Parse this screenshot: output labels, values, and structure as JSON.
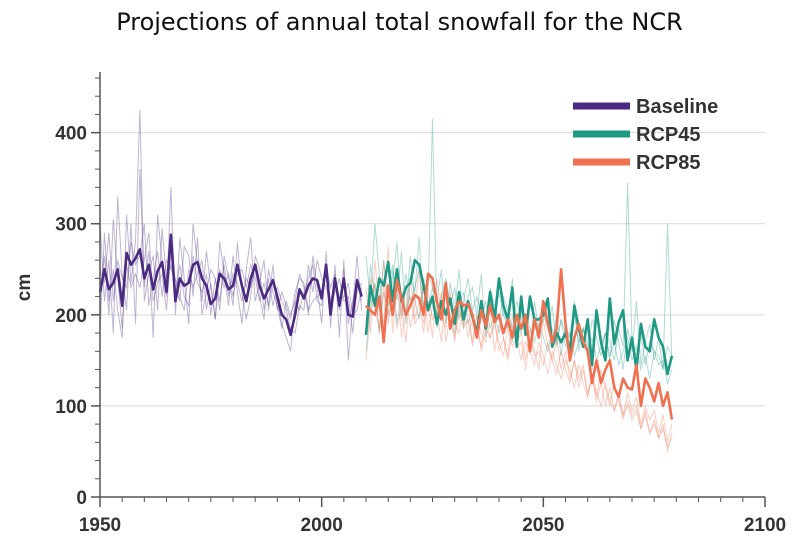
{
  "title": "Projections of annual total snowfall for the NCR",
  "chart_data": {
    "type": "line",
    "title": "Projections of annual total snowfall for the NCR",
    "xlabel": "",
    "ylabel": "cm",
    "xlim": [
      1950,
      2100
    ],
    "ylim": [
      0,
      460
    ],
    "x_ticks": [
      1950,
      2000,
      2050,
      2100
    ],
    "y_ticks": [
      0,
      100,
      200,
      300,
      400
    ],
    "grid": "horizontal",
    "legend_position": "top-right",
    "series": [
      {
        "name": "Baseline",
        "color": "#4b2a82",
        "x_start": 1950,
        "values": [
          225,
          250,
          228,
          235,
          250,
          210,
          268,
          255,
          262,
          272,
          240,
          255,
          228,
          248,
          258,
          225,
          288,
          215,
          240,
          232,
          235,
          255,
          258,
          240,
          232,
          212,
          218,
          245,
          240,
          228,
          232,
          255,
          232,
          215,
          240,
          255,
          232,
          218,
          228,
          238,
          220,
          200,
          195,
          178,
          200,
          228,
          218,
          232,
          240,
          238,
          218,
          255,
          200,
          240,
          210,
          240,
          200,
          198,
          238,
          220
        ],
        "ensemble": [
          [
            305,
            215,
            260,
            180,
            330,
            245,
            205,
            300,
            190,
            360,
            230,
            270,
            175,
            310,
            260,
            220,
            340,
            200,
            285,
            240,
            190,
            300,
            255,
            215,
            270,
            230,
            195,
            280,
            245,
            210,
            265,
            225,
            190,
            250,
            285,
            215,
            235,
            260,
            205,
            240,
            215,
            190,
            175,
            160,
            215,
            245,
            230,
            200,
            265,
            230,
            190,
            270,
            185,
            255,
            175,
            260,
            150,
            210,
            265,
            205
          ],
          [
            180,
            290,
            215,
            250,
            205,
            175,
            310,
            235,
            280,
            425,
            215,
            245,
            265,
            205,
            295,
            240,
            255,
            230,
            215,
            275,
            265,
            220,
            285,
            200,
            225,
            250,
            240,
            205,
            265,
            240,
            210,
            280,
            225,
            195,
            220,
            265,
            250,
            205,
            240,
            210,
            230,
            215,
            205,
            185,
            180,
            210,
            205,
            255,
            225,
            260,
            240,
            230,
            210,
            225,
            240,
            215,
            220,
            180,
            225,
            235
          ],
          [
            250,
            235,
            290,
            215,
            260,
            240,
            230,
            280,
            255,
            265,
            300,
            210,
            240,
            270,
            220,
            260,
            250,
            240,
            220,
            205,
            250,
            230,
            245,
            260,
            205,
            235,
            195,
            250,
            230,
            245,
            220,
            245,
            250,
            230,
            255,
            240,
            215,
            235,
            210,
            255,
            205,
            225,
            210,
            195,
            225,
            240,
            235,
            205,
            215,
            220,
            225,
            250,
            215,
            235,
            215,
            220,
            235,
            200,
            205,
            230
          ],
          [
            215,
            265,
            200,
            305,
            240,
            185,
            255,
            230,
            245,
            230,
            260,
            290,
            215,
            235,
            245,
            205,
            270,
            225,
            255,
            220,
            210,
            265,
            235,
            225,
            245,
            200,
            240,
            215,
            255,
            220,
            245,
            235,
            215,
            240,
            230,
            250,
            220,
            195,
            250,
            225,
            210,
            185,
            215,
            200,
            215,
            205,
            225,
            240,
            255,
            215,
            210,
            255,
            230,
            245,
            205,
            250,
            190,
            215,
            240,
            215
          ]
        ]
      },
      {
        "name": "RCP45",
        "color": "#1f9983",
        "x_start": 2010,
        "values": [
          178,
          232,
          210,
          240,
          232,
          258,
          215,
          250,
          215,
          230,
          235,
          260,
          255,
          232,
          205,
          220,
          190,
          215,
          200,
          218,
          190,
          225,
          195,
          215,
          198,
          180,
          215,
          185,
          225,
          195,
          240,
          210,
          195,
          230,
          165,
          220,
          178,
          220,
          195,
          195,
          200,
          218,
          165,
          180,
          170,
          180,
          160,
          210,
          185,
          165,
          195,
          145,
          205,
          170,
          150,
          218,
          168,
          192,
          205,
          150,
          175,
          140,
          190,
          165,
          160,
          195,
          175,
          165,
          135,
          155
        ],
        "ensemble": [
          [
            265,
            215,
            300,
            245,
            180,
            230,
            255,
            215,
            270,
            190,
            240,
            225,
            285,
            205,
            245,
            230,
            215,
            250,
            190,
            235,
            205,
            250,
            185,
            220,
            230,
            200,
            245,
            175,
            215,
            190,
            225,
            200,
            185,
            240,
            170,
            205,
            190,
            165,
            215,
            180,
            195,
            210,
            170,
            200,
            155,
            190,
            175,
            215,
            160,
            185,
            170,
            140,
            200,
            165,
            180,
            150,
            195,
            170,
            140,
            185,
            160,
            215,
            145,
            170,
            190,
            150,
            175,
            140,
            165,
            155
          ],
          [
            190,
            255,
            220,
            205,
            260,
            210,
            235,
            280,
            200,
            245,
            215,
            230,
            250,
            200,
            225,
            415,
            200,
            220,
            240,
            210,
            230,
            195,
            215,
            240,
            205,
            220,
            200,
            185,
            230,
            210,
            195,
            220,
            205,
            185,
            215,
            195,
            180,
            210,
            195,
            175,
            200,
            185,
            210,
            165,
            195,
            180,
            165,
            200,
            170,
            185,
            160,
            195,
            175,
            155,
            180,
            170,
            150,
            185,
            165,
            345,
            170,
            155,
            180,
            145,
            170,
            160,
            155,
            140,
            300,
            150
          ],
          [
            160,
            210,
            235,
            180,
            225,
            200,
            250,
            190,
            225,
            200,
            265,
            215,
            195,
            240,
            210,
            230,
            185,
            205,
            220,
            195,
            180,
            210,
            225,
            190,
            205,
            175,
            195,
            215,
            185,
            200,
            180,
            205,
            190,
            170,
            195,
            180,
            200,
            185,
            170,
            190,
            175,
            160,
            185,
            170,
            195,
            165,
            180,
            155,
            170,
            185,
            160,
            175,
            150,
            165,
            180,
            155,
            170,
            145,
            160,
            175,
            150,
            165,
            140,
            155,
            130,
            160,
            145,
            150,
            125,
            140
          ]
        ]
      },
      {
        "name": "RCP85",
        "color": "#f0704f",
        "x_start": 2010,
        "values": [
          210,
          205,
          200,
          220,
          170,
          232,
          200,
          238,
          218,
          200,
          210,
          222,
          218,
          200,
          245,
          240,
          215,
          195,
          235,
          185,
          205,
          215,
          210,
          212,
          200,
          175,
          205,
          188,
          210,
          192,
          200,
          180,
          195,
          175,
          200,
          185,
          200,
          160,
          195,
          175,
          215,
          190,
          170,
          185,
          250,
          190,
          150,
          175,
          190,
          170,
          160,
          125,
          150,
          125,
          140,
          150,
          120,
          110,
          130,
          120,
          118,
          145,
          100,
          130,
          120,
          105,
          125,
          100,
          115,
          85
        ],
        "ensemble": [
          [
            150,
            200,
            235,
            180,
            260,
            190,
            225,
            185,
            210,
            170,
            240,
            195,
            215,
            180,
            225,
            195,
            205,
            170,
            230,
            190,
            175,
            210,
            185,
            195,
            170,
            200,
            160,
            185,
            175,
            195,
            160,
            175,
            150,
            185,
            165,
            170,
            140,
            175,
            155,
            160,
            145,
            170,
            150,
            135,
            160,
            140,
            125,
            150,
            130,
            145,
            115,
            130,
            110,
            140,
            120,
            100,
            125,
            105,
            90,
            115,
            95,
            110,
            80,
            100,
            85,
            95,
            70,
            90,
            60,
            80
          ],
          [
            230,
            180,
            260,
            210,
            190,
            275,
            180,
            250,
            195,
            230,
            185,
            210,
            250,
            190,
            215,
            175,
            240,
            200,
            185,
            225,
            170,
            205,
            190,
            215,
            165,
            200,
            180,
            170,
            210,
            160,
            190,
            175,
            155,
            200,
            170,
            180,
            150,
            185,
            160,
            140,
            195,
            165,
            150,
            175,
            140,
            160,
            130,
            150,
            120,
            140,
            110,
            135,
            105,
            125,
            100,
            120,
            95,
            110,
            85,
            105,
            90,
            100,
            75,
            95,
            70,
            85,
            65,
            80,
            50,
            70
          ],
          [
            190,
            240,
            205,
            185,
            230,
            200,
            215,
            240,
            175,
            205,
            220,
            190,
            200,
            235,
            180,
            210,
            195,
            225,
            170,
            200,
            190,
            180,
            215,
            175,
            195,
            185,
            165,
            200,
            175,
            190,
            170,
            155,
            185,
            165,
            175,
            150,
            170,
            160,
            145,
            170,
            155,
            135,
            160,
            145,
            130,
            150,
            140,
            120,
            145,
            125,
            110,
            135,
            115,
            100,
            125,
            105,
            95,
            115,
            90,
            100,
            85,
            95,
            75,
            90,
            70,
            80,
            65,
            75,
            55,
            65
          ]
        ]
      }
    ]
  }
}
